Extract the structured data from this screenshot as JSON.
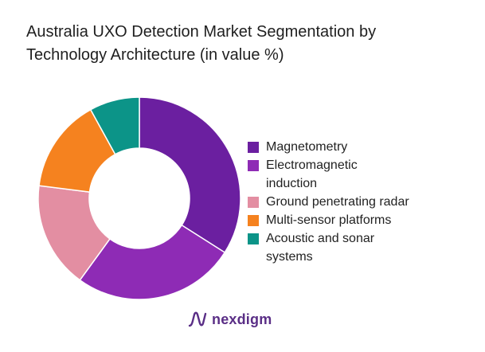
{
  "title": "Australia UXO Detection Market Segmentation by Technology Architecture (in value %)",
  "brand": {
    "name": "nexdigm",
    "icon": "nexdigm-logo-icon"
  },
  "chart_data": {
    "type": "pie",
    "title": "Australia UXO Detection Market Segmentation by Technology Architecture (in value %)",
    "legend_position": "right",
    "donut": true,
    "categories": [
      "Magnetometry",
      "Electromagnetic induction",
      "Ground penetrating radar",
      "Multi-sensor platforms",
      "Acoustic and sonar systems"
    ],
    "legend_labels": [
      "Magnetometry",
      "Electromagnetic\ninduction",
      "Ground penetrating radar",
      "Multi-sensor platforms",
      "Acoustic and sonar\nsystems"
    ],
    "values": [
      34,
      26,
      17,
      15,
      8
    ],
    "colors": [
      "#6b1fa0",
      "#8e2bb5",
      "#e38ea2",
      "#f5821f",
      "#0c9488"
    ]
  }
}
